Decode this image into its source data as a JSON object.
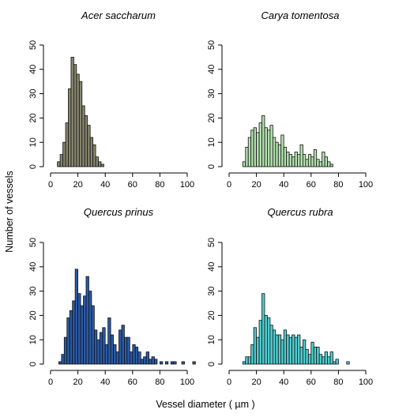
{
  "figure": {
    "ylabel": "Number of vessels",
    "xlabel": "Vessel diameter ( µm )"
  },
  "chart_data": [
    {
      "type": "bar",
      "title": "Acer saccharum",
      "color": "#86856e",
      "xlim": [
        0,
        100
      ],
      "ylim": [
        0,
        50
      ],
      "xticks": [
        0,
        20,
        40,
        60,
        80,
        100
      ],
      "yticks": [
        0,
        10,
        20,
        30,
        40,
        50
      ],
      "bin_width": 2,
      "bin_start": [
        5,
        7,
        9,
        11,
        13,
        15,
        17,
        19,
        21,
        23,
        25,
        27,
        29,
        31,
        33,
        35,
        37
      ],
      "values": [
        2,
        5,
        10,
        18,
        32,
        45,
        42,
        38,
        35,
        25,
        21,
        17,
        12,
        9,
        4,
        2,
        1
      ]
    },
    {
      "type": "bar",
      "title": "Carya tomentosa",
      "color": "#b3dfae",
      "xlim": [
        0,
        100
      ],
      "ylim": [
        0,
        50
      ],
      "xticks": [
        0,
        20,
        40,
        60,
        80,
        100
      ],
      "yticks": [
        0,
        10,
        20,
        30,
        40,
        50
      ],
      "bin_width": 2,
      "bin_start": [
        10,
        12,
        14,
        16,
        18,
        20,
        22,
        24,
        26,
        28,
        30,
        32,
        34,
        36,
        38,
        40,
        42,
        44,
        46,
        48,
        50,
        52,
        54,
        56,
        58,
        60,
        62,
        64,
        66,
        68,
        70,
        72,
        74
      ],
      "values": [
        2,
        8,
        12,
        15,
        16,
        14,
        18,
        21,
        16,
        15,
        17,
        12,
        10,
        9,
        13,
        8,
        6,
        5,
        4,
        6,
        5,
        9,
        5,
        3,
        5,
        4,
        7,
        3,
        2,
        6,
        4,
        2,
        1
      ]
    },
    {
      "type": "bar",
      "title": "Quercus prinus",
      "color": "#2a5aa8",
      "xlim": [
        0,
        100
      ],
      "ylim": [
        0,
        50
      ],
      "xticks": [
        0,
        20,
        40,
        60,
        80,
        100
      ],
      "yticks": [
        0,
        10,
        20,
        30,
        40,
        50
      ],
      "bin_width": 2,
      "bin_start": [
        6,
        8,
        10,
        12,
        14,
        16,
        18,
        20,
        22,
        24,
        26,
        28,
        30,
        32,
        34,
        36,
        38,
        40,
        42,
        44,
        46,
        48,
        50,
        52,
        54,
        56,
        58,
        60,
        62,
        64,
        66,
        68,
        70,
        72,
        74,
        76,
        80,
        84,
        88,
        90,
        96,
        104
      ],
      "values": [
        1,
        4,
        11,
        19,
        22,
        26,
        39,
        29,
        24,
        28,
        36,
        30,
        24,
        14,
        10,
        13,
        15,
        8,
        19,
        12,
        8,
        5,
        14,
        16,
        11,
        11,
        5,
        8,
        7,
        5,
        2,
        3,
        5,
        2,
        3,
        2,
        1,
        1,
        1,
        1,
        1,
        1
      ]
    },
    {
      "type": "bar",
      "title": "Quercus rubra",
      "color": "#50cdd0",
      "xlim": [
        0,
        100
      ],
      "ylim": [
        0,
        50
      ],
      "xticks": [
        0,
        20,
        40,
        60,
        80,
        100
      ],
      "yticks": [
        0,
        10,
        20,
        30,
        40,
        50
      ],
      "bin_width": 2,
      "bin_start": [
        10,
        12,
        14,
        16,
        18,
        20,
        22,
        24,
        26,
        28,
        30,
        32,
        34,
        36,
        38,
        40,
        42,
        44,
        46,
        48,
        50,
        52,
        54,
        56,
        58,
        60,
        62,
        64,
        66,
        68,
        70,
        72,
        74,
        76,
        78,
        86
      ],
      "values": [
        1,
        3,
        3,
        8,
        15,
        11,
        18,
        29,
        20,
        19,
        16,
        14,
        12,
        12,
        10,
        14,
        12,
        11,
        12,
        11,
        12,
        7,
        10,
        6,
        4,
        9,
        7,
        7,
        4,
        3,
        5,
        3,
        5,
        1,
        2,
        1
      ]
    }
  ]
}
